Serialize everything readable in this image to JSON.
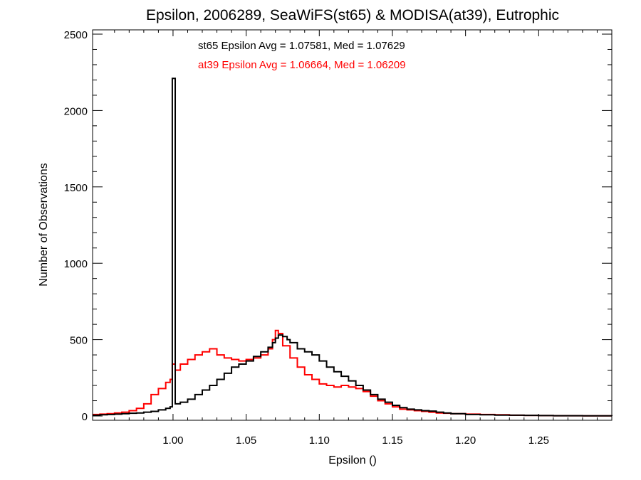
{
  "chart_data": {
    "type": "line",
    "title": "Epsilon, 2006289, SeaWiFS(st65) & MODISA(at39), Eutrophic",
    "xlabel": "Epsilon ()",
    "ylabel": "Number of Observations",
    "xlim": [
      0.945,
      1.3
    ],
    "ylim": [
      0,
      2500
    ],
    "xticks": [
      1.0,
      1.05,
      1.1,
      1.15,
      1.2,
      1.25
    ],
    "xtick_labels": [
      "1.00",
      "1.05",
      "1.10",
      "1.15",
      "1.20",
      "1.25"
    ],
    "yticks": [
      0,
      500,
      1000,
      1500,
      2000,
      2500
    ],
    "ytick_labels": [
      "0",
      "500",
      "1000",
      "1500",
      "2000",
      "2500"
    ],
    "grid": false,
    "annotations": [
      {
        "text": "st65 Epsilon Avg = 1.07581, Med = 1.07629",
        "color": "#000000"
      },
      {
        "text": "at39 Epsilon Avg = 1.06664, Med = 1.06209",
        "color": "#ff0000"
      }
    ],
    "series": [
      {
        "color": "#000000",
        "x": [
          0.945,
          0.95,
          0.955,
          0.96,
          0.965,
          0.97,
          0.975,
          0.98,
          0.985,
          0.99,
          0.995,
          0.998,
          0.9995,
          1.0015,
          1.005,
          1.01,
          1.015,
          1.02,
          1.025,
          1.03,
          1.035,
          1.04,
          1.045,
          1.05,
          1.055,
          1.06,
          1.065,
          1.068,
          1.07,
          1.072,
          1.075,
          1.078,
          1.08,
          1.085,
          1.09,
          1.095,
          1.1,
          1.105,
          1.11,
          1.115,
          1.12,
          1.125,
          1.13,
          1.135,
          1.14,
          1.145,
          1.15,
          1.155,
          1.16,
          1.165,
          1.17,
          1.175,
          1.18,
          1.185,
          1.19,
          1.2,
          1.21,
          1.22,
          1.23,
          1.24,
          1.25,
          1.26,
          1.27,
          1.28,
          1.29,
          1.3
        ],
        "y": [
          5,
          8,
          10,
          12,
          15,
          18,
          20,
          25,
          30,
          40,
          50,
          60,
          2210,
          80,
          90,
          110,
          140,
          170,
          200,
          240,
          280,
          320,
          340,
          360,
          390,
          420,
          450,
          480,
          510,
          530,
          520,
          500,
          480,
          440,
          420,
          400,
          360,
          320,
          290,
          260,
          230,
          200,
          170,
          140,
          110,
          90,
          70,
          55,
          45,
          40,
          35,
          32,
          25,
          20,
          15,
          10,
          8,
          6,
          5,
          4,
          3,
          2,
          2,
          1,
          1,
          0
        ]
      },
      {
        "color": "#ff0000",
        "x": [
          0.945,
          0.95,
          0.955,
          0.96,
          0.965,
          0.97,
          0.975,
          0.98,
          0.985,
          0.99,
          0.995,
          0.998,
          0.9995,
          1.0015,
          1.005,
          1.01,
          1.015,
          1.02,
          1.025,
          1.03,
          1.035,
          1.04,
          1.045,
          1.05,
          1.055,
          1.06,
          1.065,
          1.068,
          1.07,
          1.072,
          1.075,
          1.08,
          1.085,
          1.09,
          1.095,
          1.1,
          1.105,
          1.11,
          1.115,
          1.12,
          1.125,
          1.13,
          1.135,
          1.14,
          1.145,
          1.15,
          1.155,
          1.16,
          1.165,
          1.17,
          1.175,
          1.18,
          1.185,
          1.19,
          1.2,
          1.21,
          1.22,
          1.23,
          1.24,
          1.25,
          1.26,
          1.27,
          1.28,
          1.29,
          1.3
        ],
        "y": [
          10,
          12,
          15,
          20,
          25,
          35,
          50,
          80,
          140,
          180,
          220,
          240,
          340,
          300,
          340,
          370,
          400,
          420,
          440,
          400,
          380,
          370,
          360,
          370,
          380,
          400,
          440,
          500,
          560,
          540,
          460,
          380,
          320,
          270,
          240,
          210,
          200,
          190,
          200,
          190,
          180,
          160,
          130,
          100,
          80,
          60,
          45,
          40,
          35,
          30,
          25,
          20,
          18,
          15,
          12,
          10,
          8,
          5,
          4,
          3,
          2,
          2,
          1,
          1,
          0
        ]
      }
    ]
  }
}
